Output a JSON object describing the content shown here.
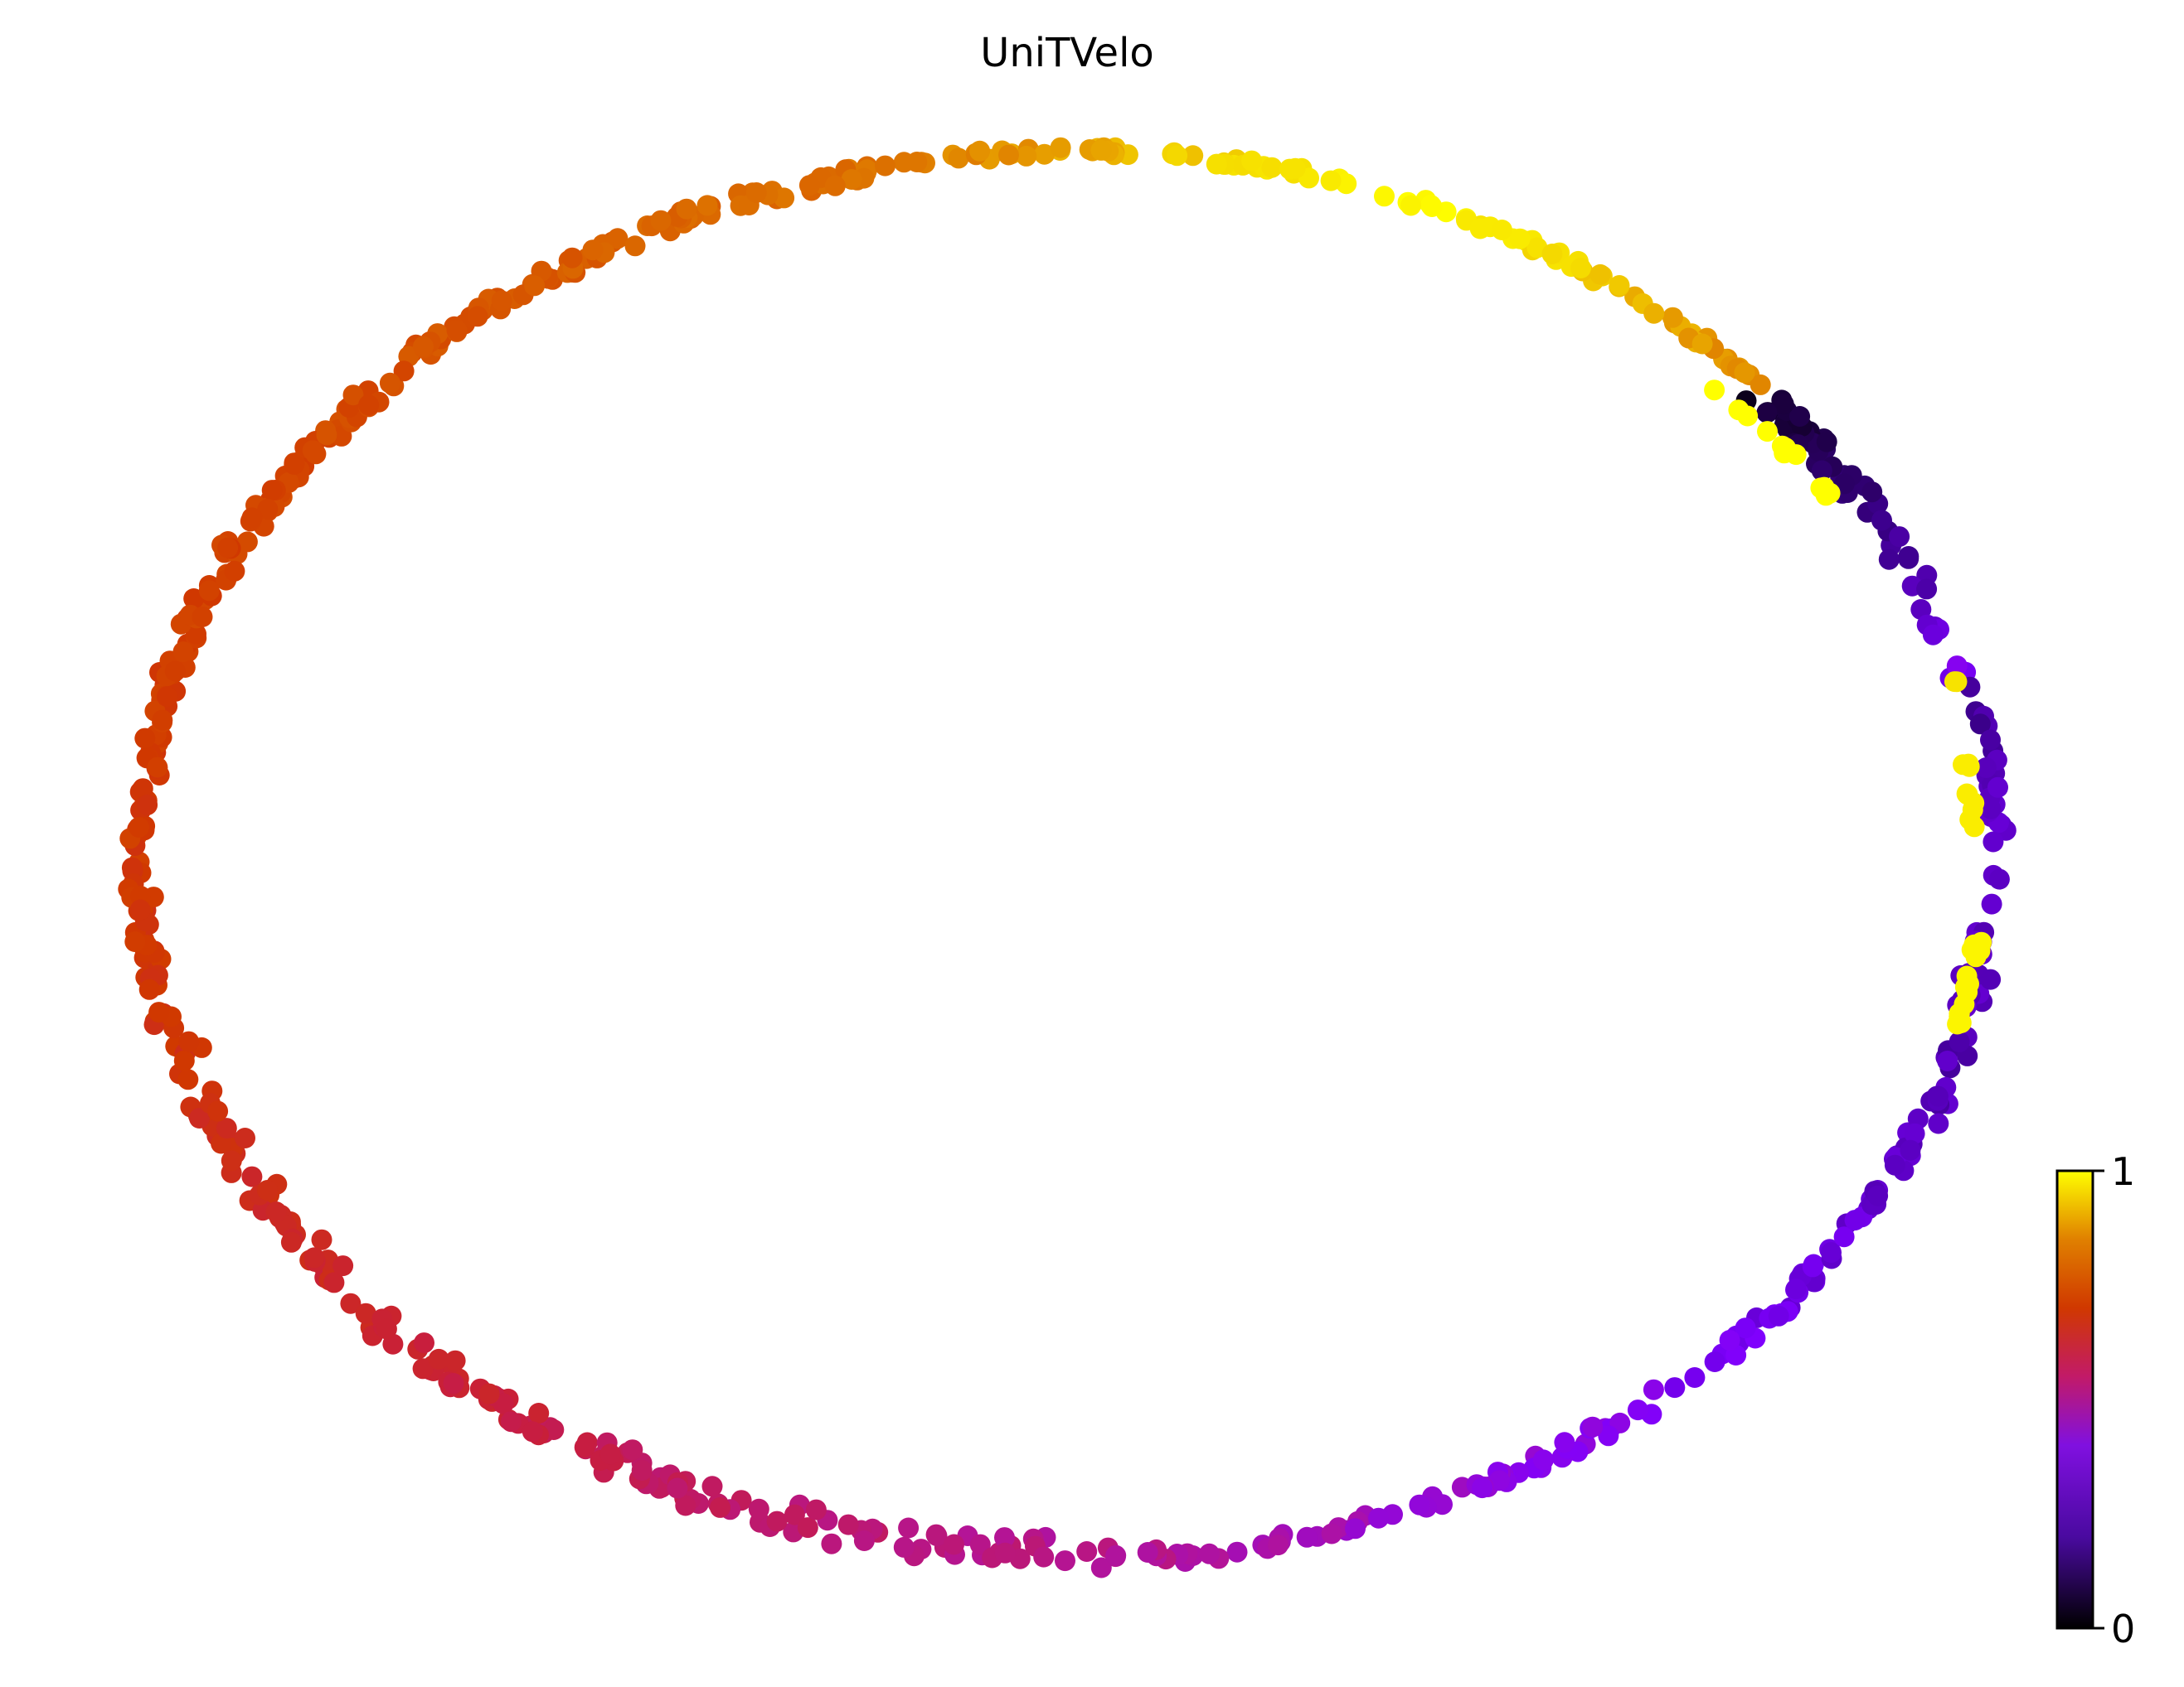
{
  "chart_data": {
    "type": "scatter",
    "title": "UniTVelo",
    "xlabel": "",
    "ylabel": "",
    "axes_visible": false,
    "grid": false,
    "colormap": "gnuplot",
    "colormap_stops": [
      "#000000",
      "#7f00ff",
      "#c21a68",
      "#d03800",
      "#e08000",
      "#ffff00"
    ],
    "colorbar": {
      "range": [
        0,
        1
      ],
      "ticks": [
        "0",
        "1"
      ],
      "placement": "bottom-right"
    },
    "point_color": "value between 0 and 1 (latent time); points lie on an ellipse",
    "segments": [
      {
        "angle_range": [
          0,
          18
        ],
        "value_range": [
          0.25,
          0.22
        ],
        "count": 30,
        "spread": 0.025
      },
      {
        "angle_range": [
          18,
          62
        ],
        "value_range": [
          0.22,
          0.34
        ],
        "count": 85,
        "spread": 0.02
      },
      {
        "angle_range": [
          62,
          84
        ],
        "value_range": [
          0.34,
          0.42
        ],
        "count": 36,
        "spread": 0.02
      },
      {
        "angle_range": [
          84,
          125
        ],
        "value_range": [
          0.42,
          0.5
        ],
        "count": 85,
        "spread": 0.035
      },
      {
        "angle_range": [
          125,
          165
        ],
        "value_range": [
          0.52,
          0.6
        ],
        "count": 95,
        "spread": 0.03
      },
      {
        "angle_range": [
          165,
          220
        ],
        "value_range": [
          0.6,
          0.66
        ],
        "count": 150,
        "spread": 0.02
      },
      {
        "angle_range": [
          220,
          258
        ],
        "value_range": [
          0.66,
          0.75
        ],
        "count": 100,
        "spread": 0.02
      },
      {
        "angle_range": [
          258,
          295
        ],
        "value_range": [
          0.75,
          1.0
        ],
        "count": 60,
        "spread": 0.012
      },
      {
        "angle_range": [
          295,
          318
        ],
        "value_range": [
          0.95,
          0.78
        ],
        "count": 45,
        "spread": 0.012
      },
      {
        "angle_range": [
          318,
          345
        ],
        "value_range": [
          0.05,
          0.3
        ],
        "count": 55,
        "spread": 0.025
      },
      {
        "angle_range": [
          345,
          360
        ],
        "value_range": [
          0.18,
          0.26
        ],
        "count": 25,
        "spread": 0.015
      }
    ],
    "inner_clusters": [
      {
        "angle_range": [
          315,
          330
        ],
        "value": 1.0,
        "count": 14,
        "radius_scale": 0.955
      },
      {
        "angle_range": [
          6,
          14
        ],
        "value": 0.97,
        "count": 16,
        "radius_scale": 0.975
      },
      {
        "angle_range": [
          352,
          358
        ],
        "value": 0.95,
        "count": 9,
        "radius_scale": 0.965
      },
      {
        "angle_range": [
          344,
          346
        ],
        "value": 0.92,
        "count": 2,
        "radius_scale": 0.975
      }
    ]
  }
}
